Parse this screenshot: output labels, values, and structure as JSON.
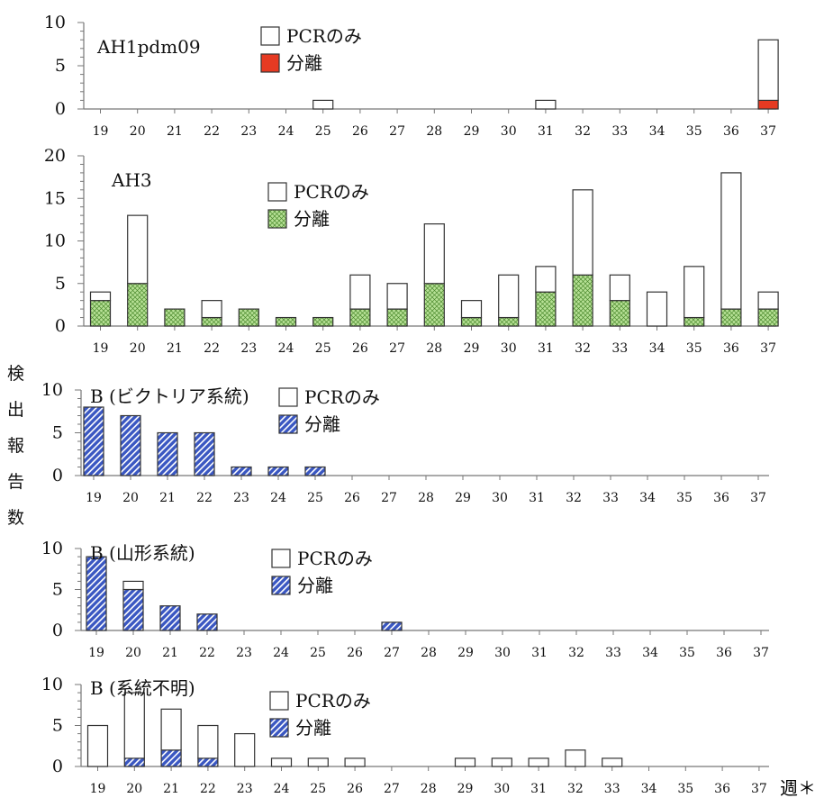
{
  "y_axis_label": [
    "検",
    "出",
    "報",
    "告",
    "数"
  ],
  "x_axis_unit": "週＊",
  "legend_pcr_label": "PCRのみ",
  "legend_iso_label": "分離",
  "colors": {
    "pcr": "#ffffff",
    "ah1": "#e63a22",
    "ah3_fill": "#b7e196",
    "ah3_hatch": "#4c8a2e",
    "b_fill": "#3a57c2",
    "b_hatch": "#ffffff"
  },
  "chart_data": [
    {
      "type": "bar",
      "title": "AH1pdm09",
      "categories": [
        "19",
        "20",
        "21",
        "22",
        "23",
        "24",
        "25",
        "26",
        "27",
        "28",
        "29",
        "30",
        "31",
        "32",
        "33",
        "34",
        "35",
        "36",
        "37"
      ],
      "series": [
        {
          "name": "分離",
          "values": [
            0,
            0,
            0,
            0,
            0,
            0,
            0,
            0,
            0,
            0,
            0,
            0,
            0,
            0,
            0,
            0,
            0,
            0,
            1
          ]
        },
        {
          "name": "PCRのみ",
          "values": [
            0,
            0,
            0,
            0,
            0,
            0,
            1,
            0,
            0,
            0,
            0,
            0,
            1,
            0,
            0,
            0,
            0,
            0,
            7
          ]
        }
      ],
      "ylim": [
        0,
        10
      ],
      "yticks": [
        "0",
        "5",
        "10"
      ],
      "legend": "top-left"
    },
    {
      "type": "bar",
      "title": "AH3",
      "categories": [
        "19",
        "20",
        "21",
        "22",
        "23",
        "24",
        "25",
        "26",
        "27",
        "28",
        "29",
        "30",
        "31",
        "32",
        "33",
        "34",
        "35",
        "36",
        "37"
      ],
      "series": [
        {
          "name": "分離",
          "values": [
            3,
            5,
            2,
            1,
            2,
            1,
            1,
            2,
            2,
            5,
            1,
            1,
            4,
            6,
            3,
            0,
            1,
            2,
            2
          ]
        },
        {
          "name": "PCRのみ",
          "values": [
            1,
            8,
            0,
            2,
            0,
            0,
            0,
            4,
            3,
            7,
            2,
            5,
            3,
            10,
            3,
            4,
            6,
            16,
            2
          ]
        }
      ],
      "ylim": [
        0,
        20
      ],
      "yticks": [
        "0",
        "5",
        "10",
        "15",
        "20"
      ],
      "legend": "top-left"
    },
    {
      "type": "bar",
      "title": "B (ビクトリア系統)",
      "categories": [
        "19",
        "20",
        "21",
        "22",
        "23",
        "24",
        "25",
        "26",
        "27",
        "28",
        "29",
        "30",
        "31",
        "32",
        "33",
        "34",
        "35",
        "36",
        "37"
      ],
      "series": [
        {
          "name": "分離",
          "values": [
            8,
            7,
            5,
            5,
            1,
            1,
            1,
            0,
            0,
            0,
            0,
            0,
            0,
            0,
            0,
            0,
            0,
            0,
            0
          ]
        },
        {
          "name": "PCRのみ",
          "values": [
            0,
            0,
            0,
            0,
            0,
            0,
            0,
            0,
            0,
            0,
            0,
            0,
            0,
            0,
            0,
            0,
            0,
            0,
            0
          ]
        }
      ],
      "ylim": [
        0,
        10
      ],
      "yticks": [
        "0",
        "5",
        "10"
      ],
      "legend": "top-left"
    },
    {
      "type": "bar",
      "title": "B (山形系統)",
      "categories": [
        "19",
        "20",
        "21",
        "22",
        "23",
        "24",
        "25",
        "26",
        "27",
        "28",
        "29",
        "30",
        "31",
        "32",
        "33",
        "34",
        "35",
        "36",
        "37"
      ],
      "series": [
        {
          "name": "分離",
          "values": [
            9,
            5,
            3,
            2,
            0,
            0,
            0,
            0,
            1,
            0,
            0,
            0,
            0,
            0,
            0,
            0,
            0,
            0,
            0
          ]
        },
        {
          "name": "PCRのみ",
          "values": [
            0,
            1,
            0,
            0,
            0,
            0,
            0,
            0,
            0,
            0,
            0,
            0,
            0,
            0,
            0,
            0,
            0,
            0,
            0
          ]
        }
      ],
      "ylim": [
        0,
        10
      ],
      "yticks": [
        "0",
        "5",
        "10"
      ],
      "legend": "top-left"
    },
    {
      "type": "bar",
      "title": "B (系統不明)",
      "categories": [
        "19",
        "20",
        "21",
        "22",
        "23",
        "24",
        "25",
        "26",
        "27",
        "28",
        "29",
        "30",
        "31",
        "32",
        "33",
        "34",
        "35",
        "36",
        "37"
      ],
      "series": [
        {
          "name": "分離",
          "values": [
            0,
            1,
            2,
            1,
            0,
            0,
            0,
            0,
            0,
            0,
            0,
            0,
            0,
            0,
            0,
            0,
            0,
            0,
            0
          ]
        },
        {
          "name": "PCRのみ",
          "values": [
            5,
            8,
            5,
            4,
            4,
            1,
            1,
            1,
            0,
            0,
            1,
            1,
            1,
            2,
            1,
            0,
            0,
            0,
            0
          ]
        }
      ],
      "ylim": [
        0,
        10
      ],
      "yticks": [
        "0",
        "5",
        "10"
      ],
      "legend": "top-left"
    }
  ]
}
